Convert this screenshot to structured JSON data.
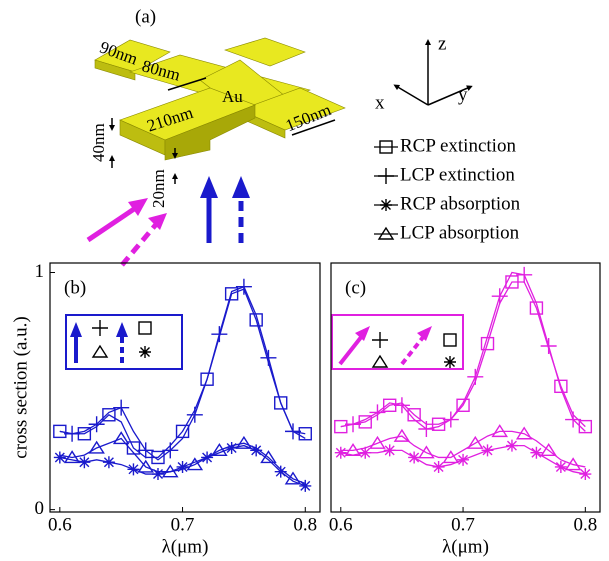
{
  "diagram": {
    "label": "(a)",
    "dimensions": [
      "90nm",
      "80nm",
      "Au",
      "210nm",
      "150nm",
      "40nm",
      "20nm"
    ],
    "axes": [
      "x",
      "y",
      "z"
    ]
  },
  "chart_data": [
    {
      "type": "line",
      "label": "(b)",
      "ylabel": "cross section (a.u.)",
      "xlabel": "λ(μm)",
      "xlim": [
        0.592,
        0.812
      ],
      "ylim": [
        -0.01,
        1.04
      ],
      "xticks": [
        0.6,
        0.7,
        0.8
      ],
      "yticks": [
        0,
        1
      ],
      "x": [
        0.6,
        0.61,
        0.62,
        0.63,
        0.64,
        0.65,
        0.66,
        0.67,
        0.68,
        0.69,
        0.7,
        0.71,
        0.72,
        0.73,
        0.74,
        0.75,
        0.76,
        0.77,
        0.78,
        0.79,
        0.8
      ],
      "series": [
        {
          "name": "RCP extinction",
          "marker": "square",
          "color": "#1a1acc",
          "values": [
            0.33,
            0.32,
            0.32,
            0.35,
            0.4,
            0.37,
            0.26,
            0.22,
            0.22,
            0.27,
            0.33,
            0.42,
            0.55,
            0.73,
            0.91,
            0.93,
            0.8,
            0.62,
            0.45,
            0.33,
            0.32
          ]
        },
        {
          "name": "LCP extinction",
          "marker": "plus",
          "color": "#1a1acc",
          "values": [
            0.33,
            0.32,
            0.33,
            0.36,
            0.41,
            0.43,
            0.33,
            0.25,
            0.21,
            0.25,
            0.3,
            0.4,
            0.55,
            0.74,
            0.92,
            0.94,
            0.82,
            0.64,
            0.45,
            0.33,
            0.3
          ]
        },
        {
          "name": "RCP absorption",
          "marker": "asterisk",
          "color": "#1a1acc",
          "values": [
            0.22,
            0.21,
            0.2,
            0.21,
            0.2,
            0.19,
            0.17,
            0.15,
            0.15,
            0.16,
            0.18,
            0.2,
            0.22,
            0.24,
            0.26,
            0.27,
            0.25,
            0.21,
            0.16,
            0.12,
            0.1
          ]
        },
        {
          "name": "LCP absorption",
          "marker": "triangle",
          "color": "#1a1acc",
          "values": [
            0.23,
            0.22,
            0.23,
            0.26,
            0.28,
            0.3,
            0.24,
            0.18,
            0.16,
            0.16,
            0.17,
            0.19,
            0.22,
            0.25,
            0.27,
            0.28,
            0.26,
            0.22,
            0.17,
            0.13,
            0.11
          ]
        }
      ]
    },
    {
      "type": "line",
      "label": "(c)",
      "xlabel": "λ(μm)",
      "xlim": [
        0.592,
        0.812
      ],
      "ylim": [
        -0.01,
        1.04
      ],
      "xticks": [
        0.6,
        0.7,
        0.8
      ],
      "x": [
        0.6,
        0.61,
        0.62,
        0.63,
        0.64,
        0.65,
        0.66,
        0.67,
        0.68,
        0.69,
        0.7,
        0.71,
        0.72,
        0.73,
        0.74,
        0.75,
        0.76,
        0.77,
        0.78,
        0.79,
        0.8
      ],
      "series": [
        {
          "marker": "square",
          "color": "#e020e0",
          "values": [
            0.35,
            0.36,
            0.37,
            0.4,
            0.44,
            0.45,
            0.4,
            0.36,
            0.36,
            0.38,
            0.44,
            0.54,
            0.7,
            0.87,
            0.96,
            0.96,
            0.85,
            0.68,
            0.52,
            0.4,
            0.35
          ]
        },
        {
          "marker": "plus",
          "color": "#e020e0",
          "values": [
            0.35,
            0.36,
            0.38,
            0.41,
            0.45,
            0.44,
            0.38,
            0.34,
            0.35,
            0.38,
            0.45,
            0.56,
            0.73,
            0.9,
            1.0,
            0.99,
            0.87,
            0.69,
            0.51,
            0.38,
            0.33
          ]
        },
        {
          "marker": "asterisk",
          "color": "#e020e0",
          "values": [
            0.24,
            0.23,
            0.24,
            0.24,
            0.25,
            0.25,
            0.22,
            0.19,
            0.18,
            0.19,
            0.21,
            0.23,
            0.25,
            0.26,
            0.27,
            0.27,
            0.24,
            0.21,
            0.18,
            0.16,
            0.15
          ]
        },
        {
          "marker": "triangle",
          "color": "#e020e0",
          "values": [
            0.25,
            0.25,
            0.26,
            0.28,
            0.3,
            0.31,
            0.27,
            0.24,
            0.22,
            0.22,
            0.25,
            0.28,
            0.31,
            0.33,
            0.33,
            0.32,
            0.29,
            0.25,
            0.21,
            0.19,
            0.18
          ]
        }
      ]
    }
  ]
}
